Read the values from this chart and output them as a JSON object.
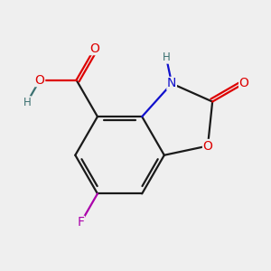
{
  "bg_color": "#efefef",
  "bond_color": "#1a1a1a",
  "bond_width": 1.6,
  "atom_colors": {
    "O": "#dd0000",
    "N": "#1010cc",
    "F": "#aa00aa",
    "H": "#3a7070",
    "C": "#1a1a1a"
  },
  "font_size_main": 10,
  "font_size_small": 8.5
}
